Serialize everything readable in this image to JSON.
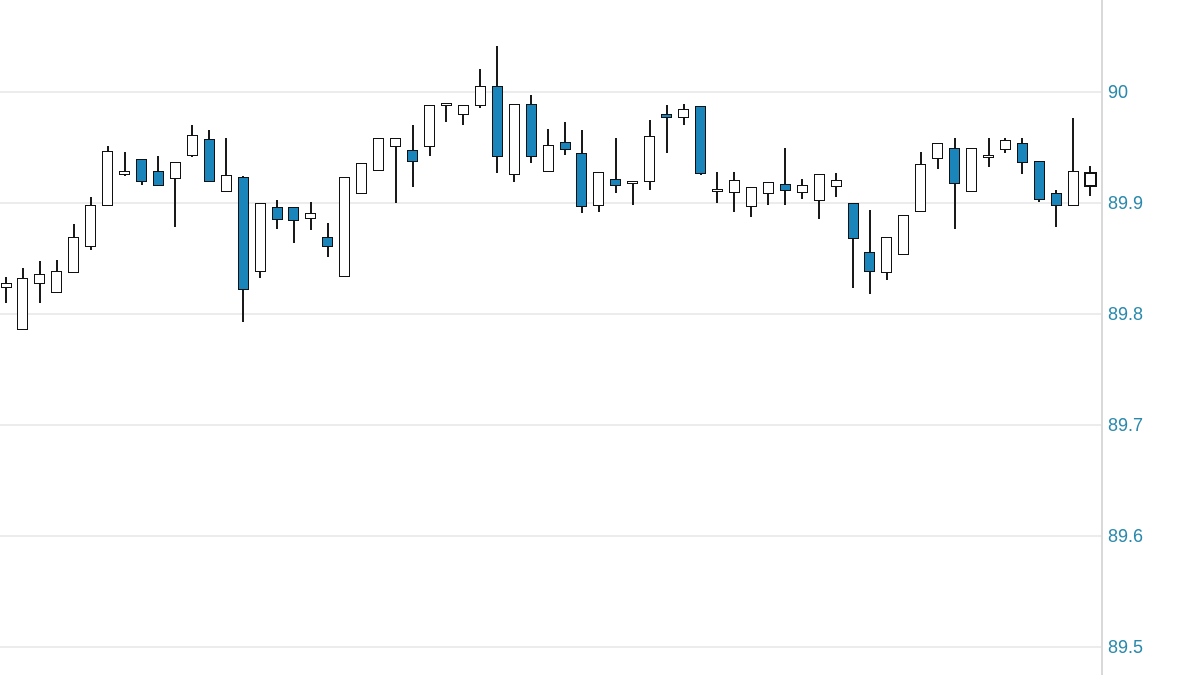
{
  "chart_data": {
    "type": "candlestick",
    "title": "",
    "xlabel": "",
    "ylabel": "",
    "legend": null,
    "grid": "horizontal-only",
    "y_axis": {
      "side": "right",
      "visible_range": [
        89.475,
        90.083
      ],
      "label_color": "#2989ac",
      "ticks": [
        {
          "label": "90",
          "value": 90.0
        },
        {
          "label": "89.9",
          "value": 89.9
        },
        {
          "label": "89.8",
          "value": 89.8
        },
        {
          "label": "89.7",
          "value": 89.7
        },
        {
          "label": "89.6",
          "value": 89.6
        },
        {
          "label": "89.5",
          "value": 89.5
        }
      ]
    },
    "colors": {
      "up_fill": "#ffffff",
      "down_fill": "#1985bb",
      "outline": "#111111",
      "wick": "#1a1a1a",
      "grid": "#ececec",
      "axis_line": "#d9d9d9"
    },
    "candles": [
      {
        "o": 89.823,
        "h": 89.833,
        "l": 89.81,
        "c": 89.828,
        "dir": "up"
      },
      {
        "o": 89.786,
        "h": 89.841,
        "l": 89.786,
        "c": 89.832,
        "dir": "up"
      },
      {
        "o": 89.827,
        "h": 89.848,
        "l": 89.81,
        "c": 89.836,
        "dir": "up"
      },
      {
        "o": 89.819,
        "h": 89.849,
        "l": 89.819,
        "c": 89.839,
        "dir": "up"
      },
      {
        "o": 89.837,
        "h": 89.881,
        "l": 89.837,
        "c": 89.869,
        "dir": "up"
      },
      {
        "o": 89.86,
        "h": 89.905,
        "l": 89.858,
        "c": 89.898,
        "dir": "up"
      },
      {
        "o": 89.897,
        "h": 89.951,
        "l": 89.897,
        "c": 89.947,
        "dir": "up"
      },
      {
        "o": 89.925,
        "h": 89.946,
        "l": 89.924,
        "c": 89.929,
        "dir": "up"
      },
      {
        "o": 89.94,
        "h": 89.94,
        "l": 89.916,
        "c": 89.919,
        "dir": "down"
      },
      {
        "o": 89.929,
        "h": 89.942,
        "l": 89.915,
        "c": 89.915,
        "dir": "down"
      },
      {
        "o": 89.922,
        "h": 89.937,
        "l": 89.878,
        "c": 89.937,
        "dir": "up"
      },
      {
        "o": 89.942,
        "h": 89.97,
        "l": 89.941,
        "c": 89.961,
        "dir": "up"
      },
      {
        "o": 89.958,
        "h": 89.966,
        "l": 89.919,
        "c": 89.919,
        "dir": "down"
      },
      {
        "o": 89.91,
        "h": 89.959,
        "l": 89.91,
        "c": 89.925,
        "dir": "up"
      },
      {
        "o": 89.923,
        "h": 89.924,
        "l": 89.793,
        "c": 89.822,
        "dir": "down"
      },
      {
        "o": 89.838,
        "h": 89.9,
        "l": 89.832,
        "c": 89.9,
        "dir": "up"
      },
      {
        "o": 89.896,
        "h": 89.903,
        "l": 89.877,
        "c": 89.885,
        "dir": "down"
      },
      {
        "o": 89.896,
        "h": 89.896,
        "l": 89.864,
        "c": 89.884,
        "dir": "down"
      },
      {
        "o": 89.886,
        "h": 89.901,
        "l": 89.876,
        "c": 89.891,
        "dir": "up"
      },
      {
        "o": 89.869,
        "h": 89.882,
        "l": 89.851,
        "c": 89.86,
        "dir": "down"
      },
      {
        "o": 89.833,
        "h": 89.923,
        "l": 89.833,
        "c": 89.923,
        "dir": "up"
      },
      {
        "o": 89.908,
        "h": 89.936,
        "l": 89.908,
        "c": 89.936,
        "dir": "up"
      },
      {
        "o": 89.929,
        "h": 89.959,
        "l": 89.929,
        "c": 89.959,
        "dir": "up"
      },
      {
        "o": 89.95,
        "h": 89.959,
        "l": 89.9,
        "c": 89.959,
        "dir": "up"
      },
      {
        "o": 89.948,
        "h": 89.97,
        "l": 89.914,
        "c": 89.937,
        "dir": "down"
      },
      {
        "o": 89.95,
        "h": 89.988,
        "l": 89.942,
        "c": 89.988,
        "dir": "up"
      },
      {
        "o": 89.987,
        "h": 89.99,
        "l": 89.973,
        "c": 89.99,
        "dir": "up"
      },
      {
        "o": 89.979,
        "h": 89.988,
        "l": 89.97,
        "c": 89.988,
        "dir": "up"
      },
      {
        "o": 89.987,
        "h": 90.021,
        "l": 89.986,
        "c": 90.005,
        "dir": "up"
      },
      {
        "o": 90.005,
        "h": 90.041,
        "l": 89.927,
        "c": 89.941,
        "dir": "down"
      },
      {
        "o": 89.925,
        "h": 89.989,
        "l": 89.919,
        "c": 89.989,
        "dir": "up"
      },
      {
        "o": 89.989,
        "h": 89.997,
        "l": 89.936,
        "c": 89.941,
        "dir": "down"
      },
      {
        "o": 89.928,
        "h": 89.967,
        "l": 89.928,
        "c": 89.952,
        "dir": "up"
      },
      {
        "o": 89.955,
        "h": 89.973,
        "l": 89.943,
        "c": 89.948,
        "dir": "down"
      },
      {
        "o": 89.945,
        "h": 89.966,
        "l": 89.891,
        "c": 89.896,
        "dir": "down"
      },
      {
        "o": 89.897,
        "h": 89.928,
        "l": 89.892,
        "c": 89.928,
        "dir": "up"
      },
      {
        "o": 89.922,
        "h": 89.959,
        "l": 89.909,
        "c": 89.915,
        "dir": "down"
      },
      {
        "o": 89.917,
        "h": 89.92,
        "l": 89.898,
        "c": 89.92,
        "dir": "up"
      },
      {
        "o": 89.919,
        "h": 89.975,
        "l": 89.912,
        "c": 89.96,
        "dir": "up"
      },
      {
        "o": 89.98,
        "h": 89.988,
        "l": 89.945,
        "c": 89.977,
        "dir": "down"
      },
      {
        "o": 89.977,
        "h": 89.989,
        "l": 89.97,
        "c": 89.985,
        "dir": "up"
      },
      {
        "o": 89.987,
        "h": 89.987,
        "l": 89.925,
        "c": 89.926,
        "dir": "down"
      },
      {
        "o": 89.911,
        "h": 89.928,
        "l": 89.9,
        "c": 89.913,
        "dir": "up"
      },
      {
        "o": 89.909,
        "h": 89.928,
        "l": 89.892,
        "c": 89.921,
        "dir": "up"
      },
      {
        "o": 89.896,
        "h": 89.914,
        "l": 89.887,
        "c": 89.914,
        "dir": "up"
      },
      {
        "o": 89.908,
        "h": 89.919,
        "l": 89.898,
        "c": 89.919,
        "dir": "up"
      },
      {
        "o": 89.917,
        "h": 89.95,
        "l": 89.898,
        "c": 89.911,
        "dir": "down"
      },
      {
        "o": 89.909,
        "h": 89.922,
        "l": 89.904,
        "c": 89.916,
        "dir": "up"
      },
      {
        "o": 89.902,
        "h": 89.926,
        "l": 89.886,
        "c": 89.926,
        "dir": "up"
      },
      {
        "o": 89.914,
        "h": 89.927,
        "l": 89.905,
        "c": 89.921,
        "dir": "up"
      },
      {
        "o": 89.9,
        "h": 89.9,
        "l": 89.823,
        "c": 89.868,
        "dir": "down"
      },
      {
        "o": 89.856,
        "h": 89.894,
        "l": 89.818,
        "c": 89.838,
        "dir": "down"
      },
      {
        "o": 89.837,
        "h": 89.869,
        "l": 89.831,
        "c": 89.869,
        "dir": "up"
      },
      {
        "o": 89.853,
        "h": 89.889,
        "l": 89.853,
        "c": 89.889,
        "dir": "up"
      },
      {
        "o": 89.892,
        "h": 89.946,
        "l": 89.892,
        "c": 89.935,
        "dir": "up"
      },
      {
        "o": 89.94,
        "h": 89.954,
        "l": 89.931,
        "c": 89.954,
        "dir": "up"
      },
      {
        "o": 89.95,
        "h": 89.959,
        "l": 89.877,
        "c": 89.917,
        "dir": "down"
      },
      {
        "o": 89.91,
        "h": 89.95,
        "l": 89.91,
        "c": 89.95,
        "dir": "up"
      },
      {
        "o": 89.941,
        "h": 89.959,
        "l": 89.932,
        "c": 89.943,
        "dir": "up"
      },
      {
        "o": 89.948,
        "h": 89.959,
        "l": 89.945,
        "c": 89.957,
        "dir": "up"
      },
      {
        "o": 89.954,
        "h": 89.959,
        "l": 89.926,
        "c": 89.936,
        "dir": "down"
      },
      {
        "o": 89.938,
        "h": 89.938,
        "l": 89.901,
        "c": 89.903,
        "dir": "down"
      },
      {
        "o": 89.909,
        "h": 89.912,
        "l": 89.878,
        "c": 89.897,
        "dir": "down"
      },
      {
        "o": 89.897,
        "h": 89.977,
        "l": 89.897,
        "c": 89.929,
        "dir": "up"
      },
      {
        "o": 89.914,
        "h": 89.933,
        "l": 89.906,
        "c": 89.928,
        "dir": "up",
        "current": true
      }
    ]
  }
}
